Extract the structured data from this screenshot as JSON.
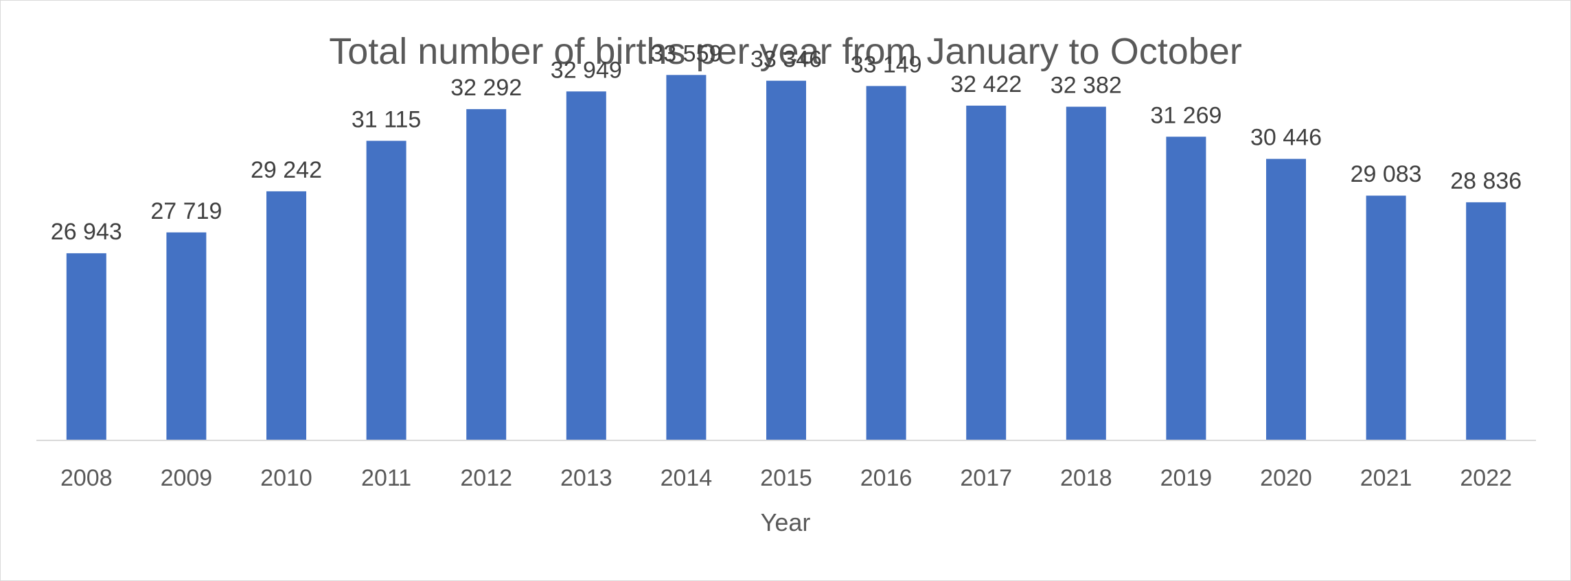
{
  "chart_data": {
    "type": "bar",
    "title": "Total number of births per year from January to October",
    "xlabel": "Year",
    "ylabel": "",
    "categories": [
      "2008",
      "2009",
      "2010",
      "2011",
      "2012",
      "2013",
      "2014",
      "2015",
      "2016",
      "2017",
      "2018",
      "2019",
      "2020",
      "2021",
      "2022"
    ],
    "values": [
      26943,
      27719,
      29242,
      31115,
      32292,
      32949,
      33559,
      33346,
      33149,
      32422,
      32382,
      31269,
      30446,
      29083,
      28836
    ],
    "data_labels": [
      "26 943",
      "27 719",
      "29 242",
      "31 115",
      "32 292",
      "32 949",
      "33 559",
      "33 346",
      "33 149",
      "32 422",
      "32 382",
      "31 269",
      "30 446",
      "29 083",
      "28 836"
    ],
    "ylim": [
      20000,
      34000
    ],
    "grid": false,
    "legend": "none",
    "colors": {
      "bar": "#4472c4",
      "axis": "#d9d9d9",
      "title": "#595959",
      "labels": "#404040"
    }
  }
}
